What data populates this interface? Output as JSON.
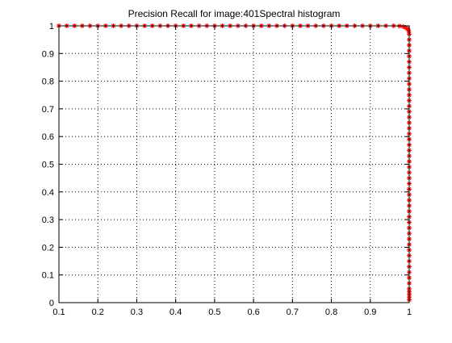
{
  "chart_data": {
    "type": "line",
    "title": "Precision Recall for image:401Spectral histogram",
    "xlabel": "",
    "ylabel": "",
    "xlim": [
      0.1,
      1
    ],
    "ylim": [
      0,
      1
    ],
    "xticks": [
      0.1,
      0.2,
      0.3,
      0.4,
      0.5,
      0.6,
      0.7,
      0.8,
      0.9,
      1
    ],
    "yticks": [
      0,
      0.1,
      0.2,
      0.3,
      0.4,
      0.5,
      0.6,
      0.7,
      0.8,
      0.9,
      1
    ],
    "xtick_labels": [
      "0.1",
      "0.2",
      "0.3",
      "0.4",
      "0.5",
      "0.6",
      "0.7",
      "0.8",
      "0.9",
      "1"
    ],
    "ytick_labels": [
      "0",
      "0.1",
      "0.2",
      "0.3",
      "0.4",
      "0.5",
      "0.6",
      "0.7",
      "0.8",
      "0.9",
      "1"
    ],
    "grid": true,
    "marker": "asterisk",
    "color": "#ff0000",
    "series": [
      {
        "x": [
          0.1,
          0.12,
          0.14,
          0.16,
          0.18,
          0.2,
          0.22,
          0.24,
          0.26,
          0.28,
          0.3,
          0.32,
          0.34,
          0.36,
          0.38,
          0.4,
          0.42,
          0.44,
          0.46,
          0.48,
          0.5,
          0.52,
          0.54,
          0.56,
          0.58,
          0.6,
          0.62,
          0.64,
          0.66,
          0.68,
          0.7,
          0.72,
          0.74,
          0.76,
          0.78,
          0.8,
          0.82,
          0.84,
          0.86,
          0.88,
          0.9,
          0.92,
          0.94,
          0.96,
          0.975,
          0.985,
          0.99,
          0.995,
          0.998,
          0.999,
          1,
          1,
          1,
          1,
          1,
          1,
          1,
          1,
          1,
          1,
          1,
          1,
          1,
          1,
          1,
          1,
          1,
          1,
          1,
          1,
          1,
          1,
          1,
          1,
          1,
          1,
          1,
          1,
          1,
          1,
          1,
          1,
          1,
          1,
          1,
          1,
          1,
          1,
          1,
          1,
          1,
          1,
          1,
          1,
          1,
          1,
          1,
          1,
          1,
          1,
          1
        ],
        "y": [
          1,
          1,
          1,
          1,
          1,
          1,
          1,
          1,
          1,
          1,
          1,
          1,
          1,
          1,
          1,
          1,
          1,
          1,
          1,
          1,
          1,
          1,
          1,
          1,
          1,
          1,
          1,
          1,
          1,
          1,
          1,
          1,
          1,
          1,
          1,
          1,
          1,
          1,
          1,
          1,
          1,
          1,
          1,
          1,
          0.999,
          0.997,
          0.994,
          0.99,
          0.985,
          0.98,
          0.97,
          0.95,
          0.93,
          0.91,
          0.89,
          0.87,
          0.85,
          0.83,
          0.81,
          0.79,
          0.77,
          0.75,
          0.73,
          0.71,
          0.69,
          0.67,
          0.65,
          0.63,
          0.61,
          0.59,
          0.57,
          0.55,
          0.53,
          0.51,
          0.49,
          0.47,
          0.45,
          0.43,
          0.41,
          0.39,
          0.37,
          0.35,
          0.33,
          0.31,
          0.29,
          0.27,
          0.25,
          0.23,
          0.21,
          0.19,
          0.17,
          0.15,
          0.13,
          0.11,
          0.09,
          0.07,
          0.05,
          0.04,
          0.03,
          0.02,
          0.01
        ]
      }
    ]
  }
}
